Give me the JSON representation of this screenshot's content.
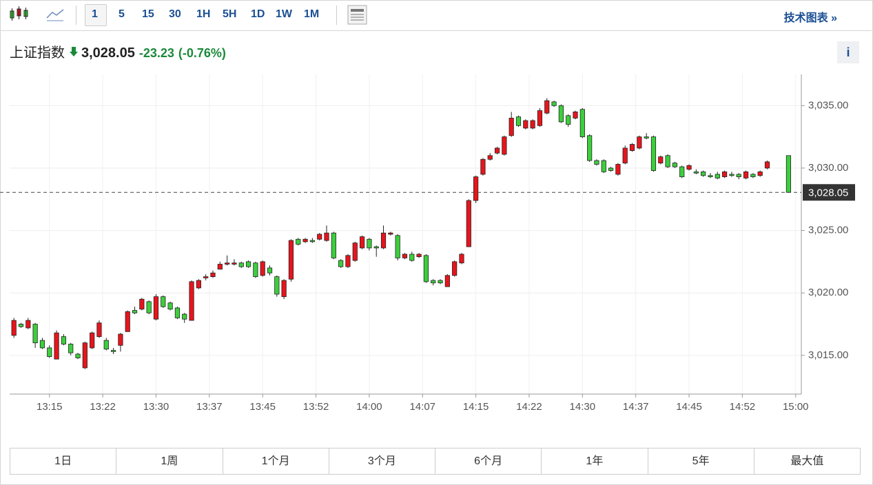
{
  "toolbar": {
    "intervals": [
      "1",
      "5",
      "15",
      "30",
      "1H",
      "5H",
      "1D",
      "1W",
      "1M"
    ],
    "tech_chart": "技术图表 »"
  },
  "header": {
    "name": "上证指数",
    "price": "3,028.05",
    "change": "-23.23",
    "change_pct": "(-0.76%)",
    "info": "i"
  },
  "chart_data": {
    "type": "candlestick",
    "x": [
      790,
      791,
      792,
      793,
      794,
      795,
      796,
      797,
      798,
      799,
      800,
      801,
      802,
      803,
      804,
      805,
      806,
      807,
      808,
      809,
      810,
      811,
      812,
      813,
      814,
      815,
      816,
      817,
      818,
      819,
      820,
      821,
      822,
      823,
      824,
      825,
      826,
      827,
      828,
      829,
      830,
      831,
      832,
      833,
      834,
      835,
      836,
      837,
      838,
      839,
      840,
      841,
      842,
      843,
      844,
      845,
      846,
      847,
      848,
      849,
      850,
      851,
      852,
      853,
      854,
      855,
      856,
      857,
      858,
      859,
      860,
      861,
      862,
      863,
      864,
      865,
      866,
      867,
      868,
      869,
      870,
      871,
      872,
      873,
      874,
      875,
      876,
      877,
      878,
      879,
      880,
      881,
      882,
      883,
      884,
      885,
      886,
      887,
      888,
      889,
      890,
      891,
      892,
      893,
      894,
      895,
      896,
      899
    ],
    "open": [
      3016.6,
      3017.5,
      3017.2,
      3017.5,
      3016.2,
      3015.6,
      3014.7,
      3016.5,
      3015.9,
      3015.1,
      3014.0,
      3015.6,
      3016.5,
      3016.2,
      3015.4,
      3015.8,
      3016.9,
      3018.6,
      3018.7,
      3019.3,
      3017.9,
      3019.7,
      3019.2,
      3018.8,
      3018.3,
      3017.8,
      3020.4,
      3021.2,
      3021.3,
      3021.9,
      3022.3,
      3022.3,
      3022.4,
      3022.5,
      3022.4,
      3021.4,
      3022.0,
      3021.3,
      3019.7,
      3021.1,
      3024.3,
      3024.1,
      3024.2,
      3024.3,
      3024.2,
      3024.8,
      3022.6,
      3022.1,
      3022.6,
      3023.6,
      3024.3,
      3023.7,
      3023.6,
      3024.7,
      3024.6,
      3022.8,
      3023.1,
      3022.9,
      3023.0,
      3021.0,
      3021.0,
      3020.5,
      3021.4,
      3022.4,
      3023.7,
      3027.4,
      3029.5,
      3030.7,
      3031.2,
      3031.1,
      3032.6,
      3034.1,
      3033.2,
      3033.2,
      3033.4,
      3034.4,
      3035.3,
      3035.0,
      3034.2,
      3034.0,
      3034.7,
      3032.6,
      3030.6,
      3030.6,
      3030.0,
      3029.5,
      3030.4,
      3031.4,
      3031.6,
      3032.5,
      3032.5,
      3030.4,
      3031.0,
      3030.4,
      3030.1,
      3029.9,
      3029.7,
      3029.7,
      3029.4,
      3029.5,
      3029.3,
      3029.5,
      3029.5,
      3029.2,
      3029.5,
      3029.4,
      3030.0,
      3031.0
    ],
    "high": [
      3018.0,
      3017.6,
      3018.0,
      3017.6,
      3016.4,
      3015.8,
      3017.0,
      3016.7,
      3016.0,
      3015.2,
      3016.1,
      3016.9,
      3017.8,
      3016.4,
      3015.6,
      3016.8,
      3018.6,
      3018.9,
      3019.6,
      3019.4,
      3019.9,
      3019.8,
      3019.3,
      3018.9,
      3018.4,
      3021.0,
      3021.1,
      3021.5,
      3021.8,
      3022.5,
      3023.0,
      3022.7,
      3022.5,
      3022.6,
      3022.5,
      3022.6,
      3022.2,
      3021.4,
      3021.1,
      3024.3,
      3024.4,
      3024.4,
      3024.4,
      3024.8,
      3025.4,
      3024.9,
      3022.7,
      3023.1,
      3024.1,
      3024.6,
      3024.4,
      3023.8,
      3025.4,
      3024.9,
      3024.7,
      3023.2,
      3023.3,
      3023.2,
      3023.1,
      3021.1,
      3021.1,
      3021.5,
      3022.6,
      3023.2,
      3027.5,
      3029.4,
      3030.8,
      3031.2,
      3031.7,
      3032.6,
      3034.5,
      3034.2,
      3033.9,
      3033.9,
      3034.8,
      3035.6,
      3035.4,
      3035.1,
      3034.3,
      3034.6,
      3034.8,
      3032.7,
      3030.7,
      3030.7,
      3030.1,
      3030.4,
      3031.8,
      3032.0,
      3032.6,
      3032.8,
      3032.6,
      3031.0,
      3031.1,
      3030.5,
      3030.2,
      3030.3,
      3029.9,
      3029.8,
      3029.6,
      3029.7,
      3029.8,
      3029.7,
      3029.6,
      3029.8,
      3029.6,
      3029.8,
      3030.6,
      3031.0
    ],
    "low": [
      3016.4,
      3017.2,
      3017.1,
      3015.6,
      3015.5,
      3014.8,
      3014.7,
      3015.8,
      3015.0,
      3014.7,
      3013.9,
      3015.5,
      3016.4,
      3015.4,
      3015.1,
      3015.3,
      3016.9,
      3018.3,
      3018.6,
      3018.3,
      3017.8,
      3018.8,
      3018.6,
      3017.9,
      3017.6,
      3017.8,
      3020.3,
      3021.0,
      3021.2,
      3021.9,
      3022.2,
      3022.2,
      3022.0,
      3022.0,
      3021.2,
      3021.3,
      3021.4,
      3019.7,
      3019.5,
      3020.9,
      3023.8,
      3024.0,
      3024.0,
      3024.2,
      3024.1,
      3022.7,
      3022.0,
      3022.0,
      3022.5,
      3023.5,
      3023.4,
      3022.9,
      3023.5,
      3024.6,
      3022.6,
      3022.7,
      3022.5,
      3022.8,
      3020.8,
      3020.6,
      3020.7,
      3020.5,
      3021.3,
      3022.3,
      3023.7,
      3027.2,
      3029.4,
      3030.6,
      3031.1,
      3031.0,
      3032.5,
      3033.3,
      3033.1,
      3033.1,
      3033.3,
      3034.3,
      3034.9,
      3033.6,
      3033.3,
      3033.9,
      3032.4,
      3030.5,
      3030.2,
      3029.6,
      3029.7,
      3029.4,
      3030.3,
      3031.3,
      3031.5,
      3032.3,
      3029.7,
      3030.3,
      3030.0,
      3030.0,
      3029.2,
      3029.8,
      3029.5,
      3029.3,
      3029.2,
      3029.1,
      3029.2,
      3029.3,
      3029.1,
      3029.1,
      3029.2,
      3029.3,
      3029.9,
      3028.05
    ],
    "close": [
      3017.8,
      3017.3,
      3017.8,
      3016.0,
      3015.6,
      3014.9,
      3016.8,
      3015.9,
      3015.2,
      3014.8,
      3016.0,
      3016.8,
      3017.6,
      3015.5,
      3015.3,
      3016.7,
      3018.5,
      3018.4,
      3019.5,
      3018.4,
      3019.7,
      3018.9,
      3018.7,
      3018.0,
      3017.9,
      3020.9,
      3021.0,
      3021.3,
      3021.6,
      3022.3,
      3022.4,
      3022.4,
      3022.1,
      3022.1,
      3021.3,
      3022.5,
      3021.6,
      3019.9,
      3021.0,
      3024.2,
      3023.9,
      3024.3,
      3024.1,
      3024.7,
      3024.8,
      3022.8,
      3022.1,
      3023.0,
      3024.0,
      3024.5,
      3023.6,
      3023.6,
      3024.8,
      3024.8,
      3022.8,
      3023.1,
      3022.6,
      3023.1,
      3020.9,
      3020.8,
      3020.8,
      3021.4,
      3022.5,
      3023.1,
      3027.4,
      3029.3,
      3030.7,
      3031.0,
      3031.6,
      3032.5,
      3034.0,
      3033.4,
      3033.8,
      3033.8,
      3034.6,
      3035.4,
      3035.0,
      3033.7,
      3033.5,
      3034.5,
      3032.5,
      3030.6,
      3030.3,
      3029.7,
      3029.8,
      3030.3,
      3031.6,
      3031.9,
      3032.5,
      3032.4,
      3029.8,
      3030.9,
      3030.1,
      3030.1,
      3029.3,
      3030.2,
      3029.6,
      3029.4,
      3029.3,
      3029.2,
      3029.7,
      3029.4,
      3029.3,
      3029.7,
      3029.3,
      3029.7,
      3030.5,
      3028.05
    ],
    "up_color": "#e8141c",
    "down_color": "#3ccf3c",
    "outline_color": "#222222",
    "xlim": [
      789.4,
      900.8
    ],
    "ylim": [
      3011.9,
      3037.5
    ],
    "xticks": [
      {
        "value": 795,
        "label": "13:15"
      },
      {
        "value": 802.5,
        "label": "13:22"
      },
      {
        "value": 810,
        "label": "13:30"
      },
      {
        "value": 817.5,
        "label": "13:37"
      },
      {
        "value": 825,
        "label": "13:45"
      },
      {
        "value": 832.5,
        "label": "13:52"
      },
      {
        "value": 840,
        "label": "14:00"
      },
      {
        "value": 847.5,
        "label": "14:07"
      },
      {
        "value": 855,
        "label": "14:15"
      },
      {
        "value": 862.5,
        "label": "14:22"
      },
      {
        "value": 870,
        "label": "14:30"
      },
      {
        "value": 877.5,
        "label": "14:37"
      },
      {
        "value": 885,
        "label": "14:45"
      },
      {
        "value": 892.5,
        "label": "14:52"
      },
      {
        "value": 900,
        "label": "15:00"
      }
    ],
    "yticks": [
      {
        "value": 3015,
        "label": "3,015.00"
      },
      {
        "value": 3020,
        "label": "3,020.00"
      },
      {
        "value": 3025,
        "label": "3,025.00"
      },
      {
        "value": 3030,
        "label": "3,030.00"
      },
      {
        "value": 3035,
        "label": "3,035.00"
      }
    ],
    "price_line": {
      "value": 3028.05,
      "label": "3,028.05"
    },
    "grid": true
  },
  "ranges": [
    "1日",
    "1周",
    "1个月",
    "3个月",
    "6个月",
    "1年",
    "5年",
    "最大值"
  ]
}
